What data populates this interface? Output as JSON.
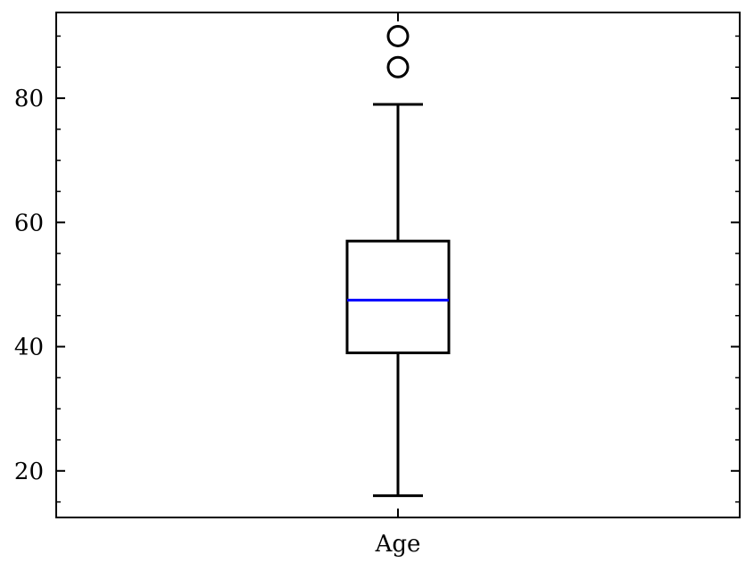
{
  "chart_data": {
    "type": "box",
    "categories": [
      "Age"
    ],
    "boxes": [
      {
        "category": "Age",
        "whisker_low": 16,
        "q1": 39,
        "median": 47.5,
        "q3": 57,
        "whisker_high": 79,
        "outliers": [
          85,
          90
        ]
      }
    ],
    "yticks": [
      20,
      40,
      60,
      80
    ],
    "ylim": [
      12.5,
      93.8
    ],
    "yticks_minor": [
      15,
      25,
      30,
      35,
      45,
      50,
      55,
      65,
      70,
      75,
      85,
      90
    ],
    "title": "",
    "xlabel": "",
    "ylabel": "",
    "grid": false,
    "colors": {
      "box": "#000000",
      "median": "#0000ff",
      "outlier": "#000000"
    }
  }
}
